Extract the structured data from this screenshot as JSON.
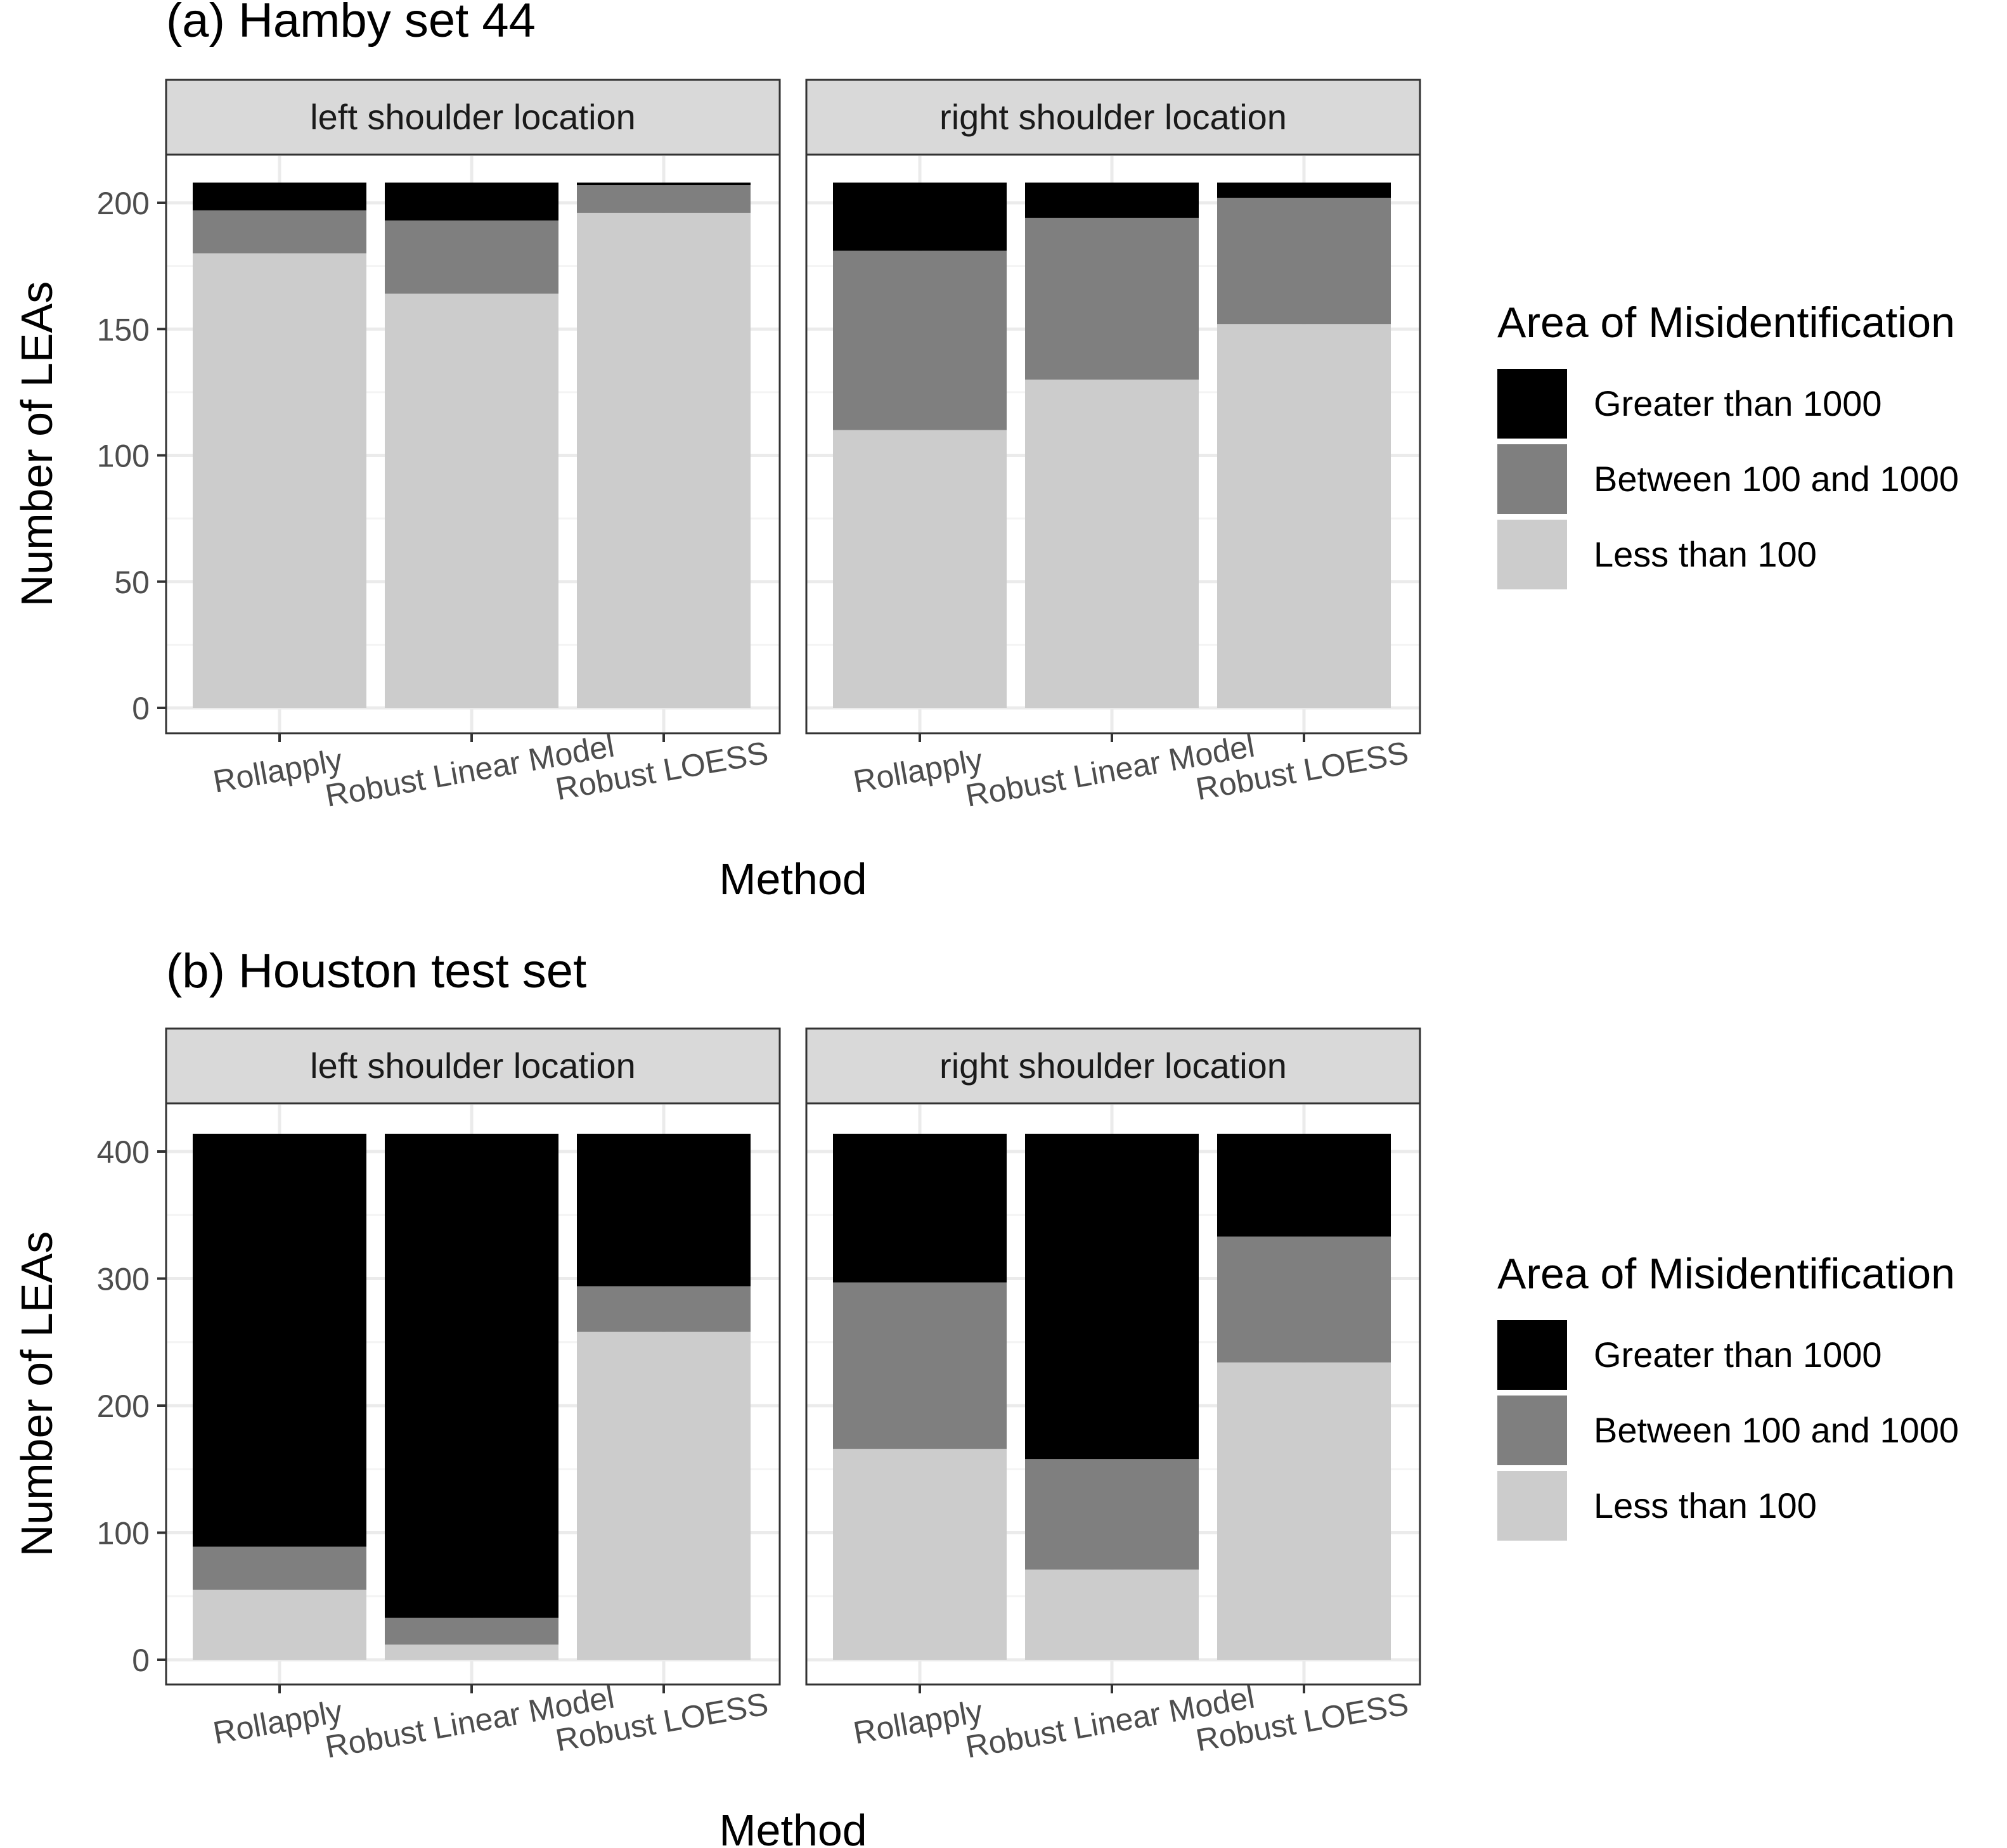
{
  "chart_data": [
    {
      "type": "bar",
      "stacked": true,
      "title": "(a) Hamby set 44",
      "xlabel": "Method",
      "ylabel": "Number of LEAs",
      "ylim": [
        0,
        220
      ],
      "yticks": [
        0,
        50,
        100,
        150,
        200
      ],
      "categories": [
        "Rollapply",
        "Robust Linear Model",
        "Robust LOESS"
      ],
      "panels": [
        {
          "strip": "left shoulder location",
          "series": [
            {
              "name": "Less than 100",
              "values": [
                180,
                164,
                196
              ]
            },
            {
              "name": "Between 100 and 1000",
              "values": [
                17,
                29,
                11
              ]
            },
            {
              "name": "Greater than 1000",
              "values": [
                11,
                15,
                1
              ]
            }
          ]
        },
        {
          "strip": "right shoulder location",
          "series": [
            {
              "name": "Less than 100",
              "values": [
                110,
                130,
                152
              ]
            },
            {
              "name": "Between 100 and 1000",
              "values": [
                71,
                64,
                50
              ]
            },
            {
              "name": "Greater than 1000",
              "values": [
                27,
                14,
                6
              ]
            }
          ]
        }
      ],
      "legend": {
        "title": "Area of Misidentification",
        "position": "right",
        "entries": [
          "Greater than 1000",
          "Between 100 and 1000",
          "Less than 100"
        ]
      },
      "grid": true
    },
    {
      "type": "bar",
      "stacked": true,
      "title": "(b) Houston test set",
      "xlabel": "Method",
      "ylabel": "Number of LEAs",
      "ylim": [
        0,
        440
      ],
      "yticks": [
        0,
        100,
        200,
        300,
        400
      ],
      "categories": [
        "Rollapply",
        "Robust Linear Model",
        "Robust LOESS"
      ],
      "panels": [
        {
          "strip": "left shoulder location",
          "series": [
            {
              "name": "Less than 100",
              "values": [
                55,
                12,
                258
              ]
            },
            {
              "name": "Between 100 and 1000",
              "values": [
                34,
                21,
                36
              ]
            },
            {
              "name": "Greater than 1000",
              "values": [
                325,
                381,
                120
              ]
            }
          ]
        },
        {
          "strip": "right shoulder location",
          "series": [
            {
              "name": "Less than 100",
              "values": [
                166,
                71,
                234
              ]
            },
            {
              "name": "Between 100 and 1000",
              "values": [
                131,
                87,
                99
              ]
            },
            {
              "name": "Greater than 1000",
              "values": [
                117,
                256,
                81
              ]
            }
          ]
        }
      ],
      "legend": {
        "title": "Area of Misidentification",
        "position": "right",
        "entries": [
          "Greater than 1000",
          "Between 100 and 1000",
          "Less than 100"
        ]
      },
      "grid": true
    }
  ],
  "colors": {
    "Greater than 1000": "#000000",
    "Between 100 and 1000": "#7f7f7f",
    "Less than 100": "#cccccc",
    "strip_fill": "#d9d9d9",
    "grid_major": "#ebebeb",
    "grid_minor": "#f4f4f4"
  }
}
